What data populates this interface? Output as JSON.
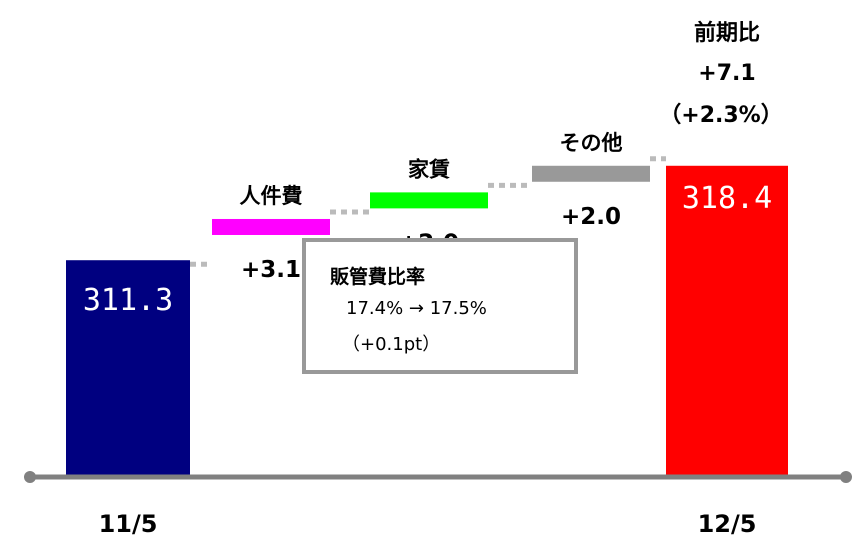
{
  "chart_data": {
    "type": "waterfall",
    "categories": [
      "11/5",
      "人件費",
      "家賃",
      "その他",
      "12/5"
    ],
    "values": [
      311.3,
      3.1,
      2.0,
      2.0,
      318.4
    ],
    "value_labels": [
      "311.3",
      "+3.1",
      "+2.0",
      "+2.0",
      "318.4"
    ],
    "colors": [
      "#000080",
      "#FF00FF",
      "#00FF00",
      "#999999",
      "#FF0000"
    ],
    "connector_color": "#BBBBBB",
    "axis_color": "#808080",
    "ylim": [
      295,
      320
    ],
    "start_label": "11/5",
    "end_label": "12/5",
    "yoy": {
      "title": "前期比",
      "value": "+7.1",
      "pct": "（+2.3%）"
    }
  },
  "note": {
    "title": "販管費比率",
    "change": "17.4% → 17.5%",
    "diff": "（+0.1pt）"
  }
}
